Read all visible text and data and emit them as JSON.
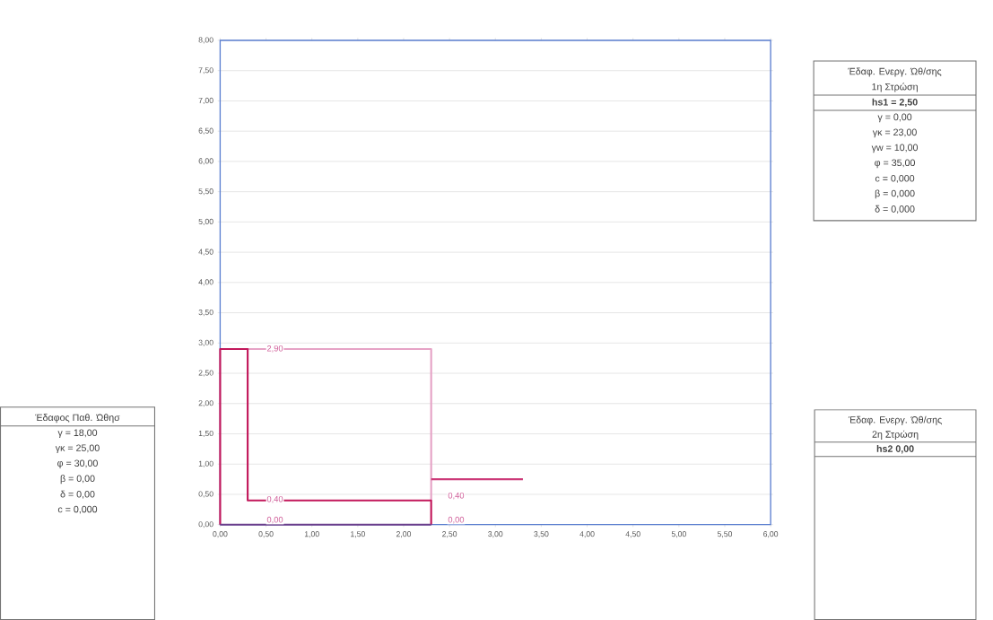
{
  "chart_data": {
    "type": "line",
    "series": [
      {
        "color": "#e6a3c6",
        "x": [
          0.3,
          2.3,
          2.3
        ],
        "values": [
          2.9,
          2.9,
          0.4
        ]
      },
      {
        "color": "#c2185b",
        "x": [
          0,
          0,
          0.3,
          0.3,
          2.3,
          2.3
        ],
        "values": [
          0,
          2.9,
          2.9,
          0.4,
          0.4,
          0
        ]
      },
      {
        "color": "#6a3f8c",
        "x": [
          0,
          2.3
        ],
        "values": [
          0,
          0
        ]
      },
      {
        "color": "#cc3a78",
        "x": [
          2.3,
          3.3
        ],
        "values": [
          0.75,
          0.75
        ]
      }
    ],
    "xlim": [
      0,
      6
    ],
    "ylim": [
      0,
      8
    ],
    "xticks": [
      {
        "value": 0,
        "label": "0,00"
      },
      {
        "value": 0.5,
        "label": "0,50"
      },
      {
        "value": 1,
        "label": "1,00"
      },
      {
        "value": 1.5,
        "label": "1,50"
      },
      {
        "value": 2,
        "label": "2,00"
      },
      {
        "value": 2.5,
        "label": "2,50"
      },
      {
        "value": 3,
        "label": "3,00"
      },
      {
        "value": 3.5,
        "label": "3,50"
      },
      {
        "value": 4,
        "label": "4,00"
      },
      {
        "value": 4.5,
        "label": "4,50"
      },
      {
        "value": 5,
        "label": "5,00"
      },
      {
        "value": 5.5,
        "label": "5,50"
      },
      {
        "value": 6,
        "label": "6,00"
      }
    ],
    "yticks": [
      {
        "value": 0,
        "label": "0,00"
      },
      {
        "value": 0.5,
        "label": "0,50"
      },
      {
        "value": 1,
        "label": "1,00"
      },
      {
        "value": 1.5,
        "label": "1,50"
      },
      {
        "value": 2,
        "label": "2,00"
      },
      {
        "value": 2.5,
        "label": "2,50"
      },
      {
        "value": 3,
        "label": "3,00"
      },
      {
        "value": 3.5,
        "label": "3,50"
      },
      {
        "value": 4,
        "label": "4,00"
      },
      {
        "value": 4.5,
        "label": "4,50"
      },
      {
        "value": 5,
        "label": "5,00"
      },
      {
        "value": 5.5,
        "label": "5,50"
      },
      {
        "value": 6,
        "label": "6,00"
      },
      {
        "value": 6.5,
        "label": "6,50"
      },
      {
        "value": 7,
        "label": "7,00"
      },
      {
        "value": 7.5,
        "label": "7,50"
      },
      {
        "value": 8,
        "label": "8,00"
      }
    ],
    "grid": "y",
    "marker": "none",
    "line_style": "solid",
    "annotations": [
      "2,90",
      "0,40",
      "0,00",
      "0,40",
      "0,00",
      "Έδαφ. Ενεργ. Ώθ/σης",
      "1η Στρώση",
      "hs1 = 2,50",
      "γ = 0,00",
      "γκ = 23,00",
      "γw = 10,00",
      "φ = 35,00",
      "c = 0,000",
      "β = 0,000",
      "δ = 0,000",
      "Έδαφ. Ενεργ. Ώθ/σης",
      "2η Στρώση",
      "hs2 0,00",
      "Έδαφος Παθ. Ώθησ",
      "γ = 18,00",
      "γκ = 25,00",
      "φ = 30,00",
      "β = 0,00",
      "δ = 0,00",
      "c = 0,000"
    ]
  }
}
